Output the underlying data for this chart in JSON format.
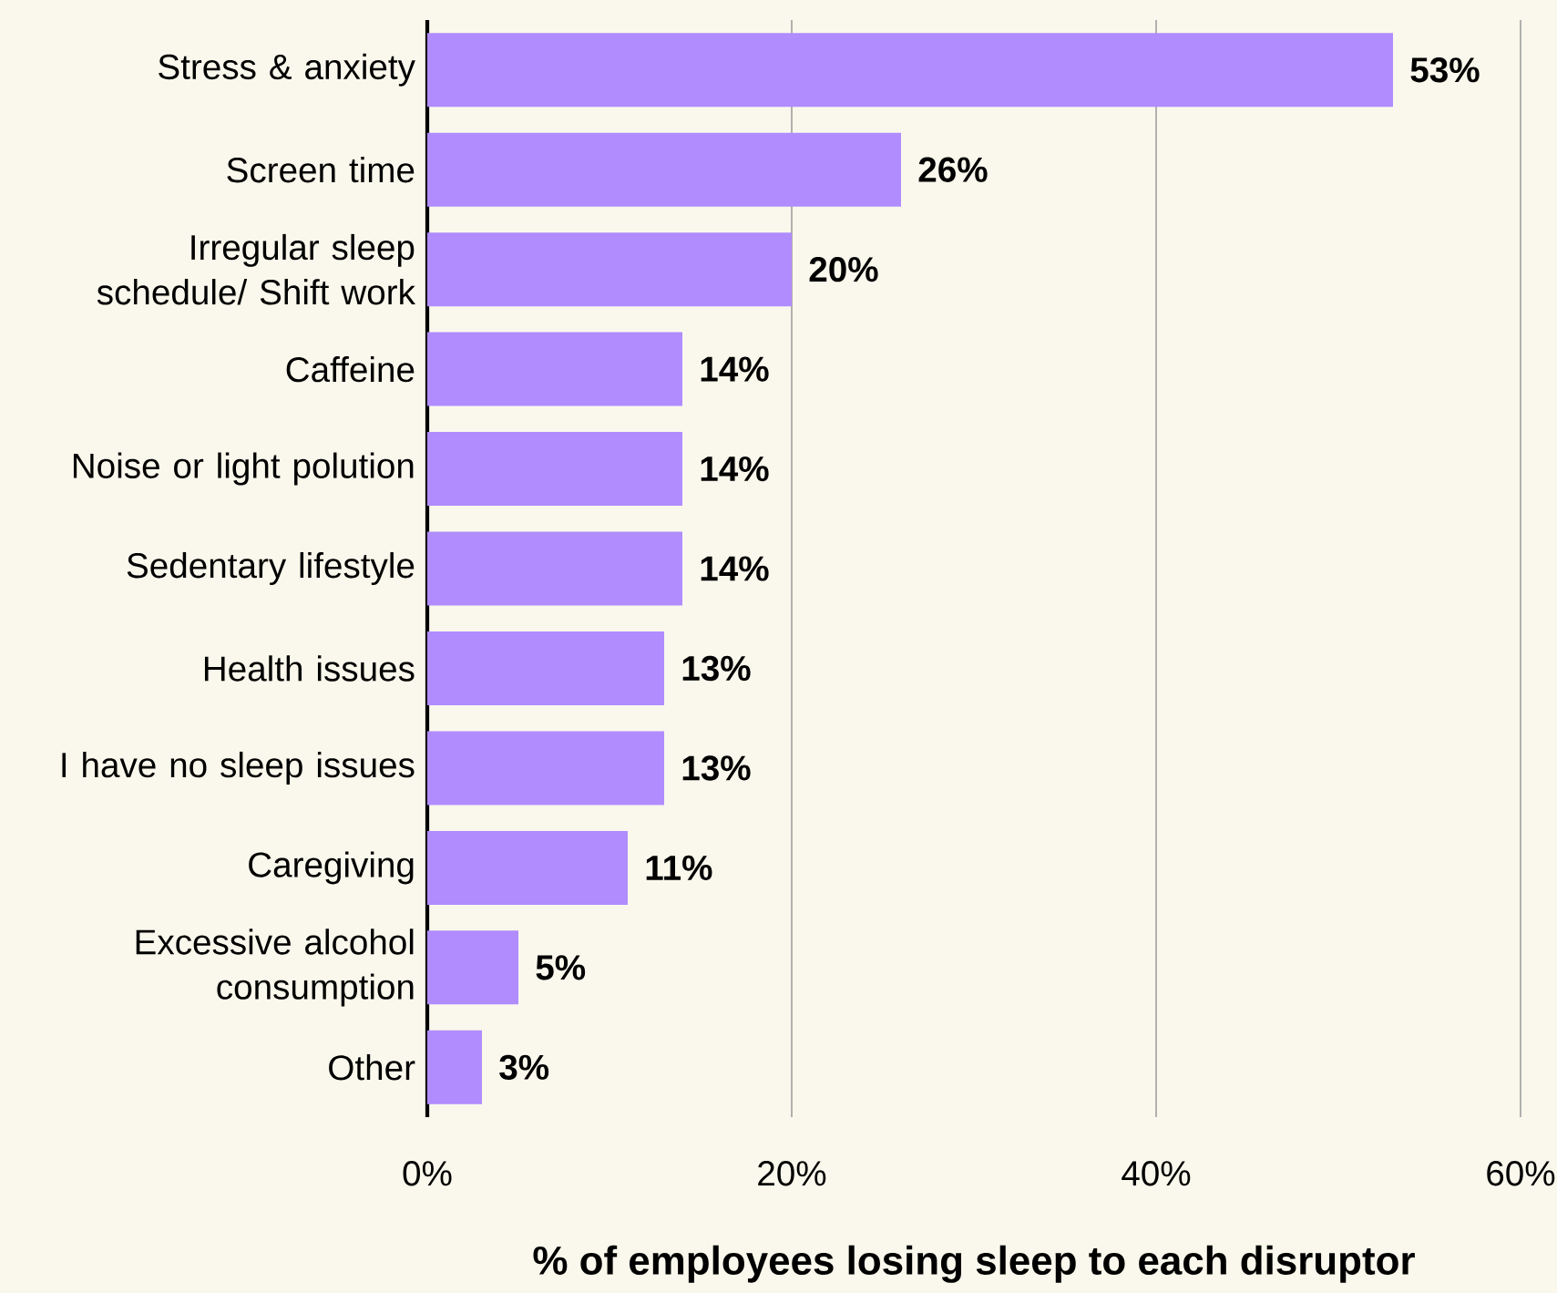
{
  "chart_data": {
    "type": "bar",
    "orientation": "horizontal",
    "xlabel": "% of employees losing sleep to each disruptor",
    "categories": [
      "Stress & anxiety",
      "Screen time",
      "Irregular sleep schedule/ Shift work",
      "Caffeine",
      "Noise or light polution",
      "Sedentary lifestyle",
      "Health issues",
      "I have no sleep issues",
      "Caregiving",
      "Excessive alcohol consumption",
      "Other"
    ],
    "values": [
      53,
      26,
      20,
      14,
      14,
      14,
      13,
      13,
      11,
      5,
      3
    ],
    "value_labels": [
      "53%",
      "26%",
      "20%",
      "14%",
      "14%",
      "14%",
      "13%",
      "13%",
      "11%",
      "5%",
      "3%"
    ],
    "color": "#b08cff",
    "xlim": [
      0,
      60
    ],
    "xticks": [
      {
        "value": 0,
        "label": "0%"
      },
      {
        "value": 20,
        "label": "20%"
      },
      {
        "value": 40,
        "label": "40%"
      },
      {
        "value": 60,
        "label": "60%"
      }
    ],
    "grid": "x"
  }
}
